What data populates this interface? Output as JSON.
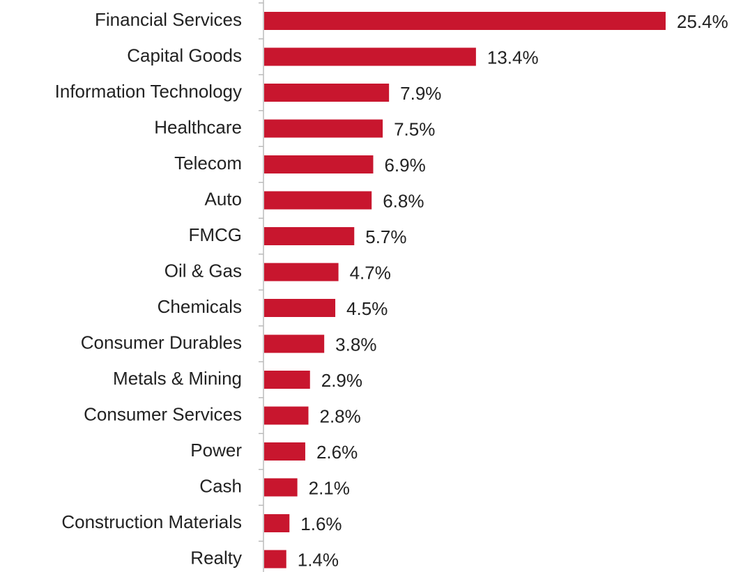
{
  "chart_data": {
    "type": "bar",
    "orientation": "horizontal",
    "categories": [
      "Financial Services",
      "Capital Goods",
      "Information Technology",
      "Healthcare",
      "Telecom",
      "Auto",
      "FMCG",
      "Oil & Gas",
      "Chemicals",
      "Consumer Durables",
      "Metals & Mining",
      "Consumer Services",
      "Power",
      "Cash",
      "Construction Materials",
      "Realty"
    ],
    "values": [
      25.4,
      13.4,
      7.9,
      7.5,
      6.9,
      6.8,
      5.7,
      4.7,
      4.5,
      3.8,
      2.9,
      2.8,
      2.6,
      2.1,
      1.6,
      1.4
    ],
    "value_labels": [
      "25.4%",
      "13.4%",
      "7.9%",
      "7.5%",
      "6.9%",
      "6.8%",
      "5.7%",
      "4.7%",
      "4.5%",
      "3.8%",
      "2.9%",
      "2.8%",
      "2.6%",
      "2.1%",
      "1.6%",
      "1.4%"
    ],
    "color": "#c8162e"
  }
}
